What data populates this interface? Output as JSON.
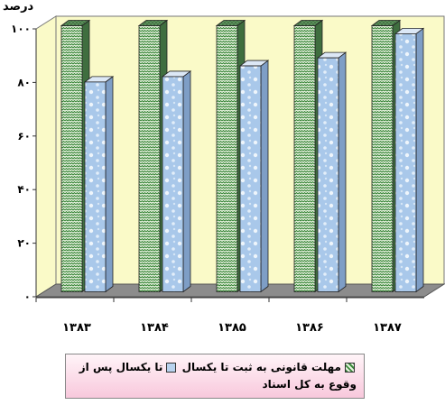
{
  "chart_data": {
    "type": "bar",
    "ylabel": "درصد",
    "ylim": [
      0,
      100
    ],
    "yticks": [
      "۰",
      "۲۰",
      "۴۰",
      "۶۰",
      "۸۰",
      "۱۰۰"
    ],
    "categories": [
      "۱۳۸۳",
      "۱۳۸۴",
      "۱۳۸۵",
      "۱۳۸۶",
      "۱۳۸۷"
    ],
    "series": [
      {
        "name": "مهلت قانونی به ثبت تا یکسال",
        "values": [
          100,
          100,
          100,
          100,
          100
        ],
        "color": "#3c8a3c"
      },
      {
        "name": "تا یکسال پس از وقوع به کل اسناد",
        "values": [
          79,
          81,
          85,
          88,
          97
        ],
        "color": "#b8d2ee"
      }
    ],
    "background": "#fafac8",
    "floor_color": "#8c8c8c",
    "grid": false,
    "legend_position": "bottom"
  }
}
